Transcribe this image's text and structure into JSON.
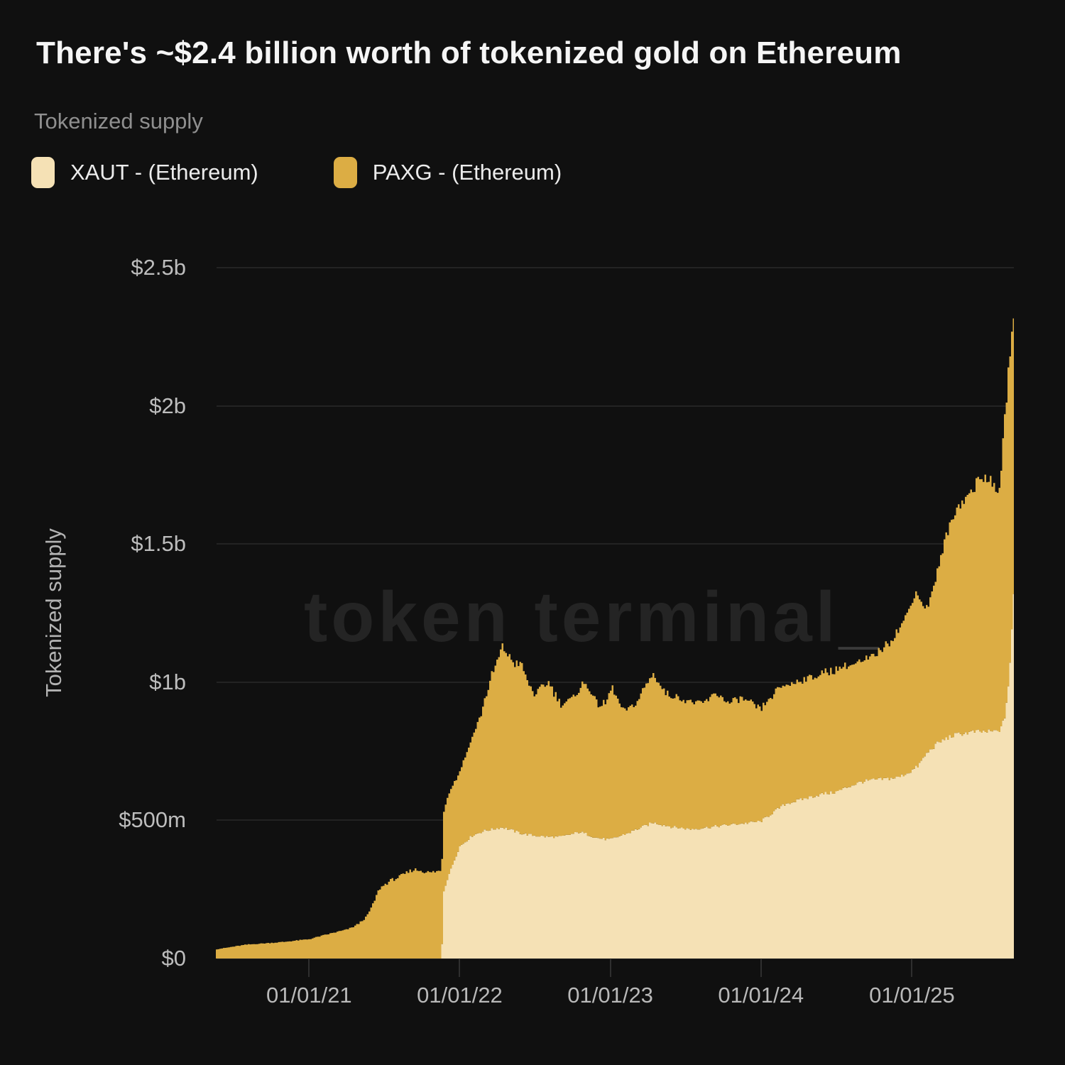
{
  "title": "There's ~$2.4 billion worth of tokenized gold on Ethereum",
  "subtitle": "Tokenized supply",
  "watermark": {
    "text": "token terminal",
    "suffix": "_"
  },
  "legend": {
    "items": [
      {
        "label": "XAUT - (Ethereum)",
        "color": "#f5e1b5"
      },
      {
        "label": "PAXG - (Ethereum)",
        "color": "#dcad44"
      }
    ]
  },
  "y_axis": {
    "title": "Tokenized supply",
    "ticks": [
      {
        "label": "$2.5b",
        "value_m": 2500
      },
      {
        "label": "$2b",
        "value_m": 2000
      },
      {
        "label": "$1.5b",
        "value_m": 1500
      },
      {
        "label": "$1b",
        "value_m": 1000
      },
      {
        "label": "$500m",
        "value_m": 500
      },
      {
        "label": "$0",
        "value_m": 0
      }
    ]
  },
  "x_axis": {
    "ticks": [
      {
        "label": "01/01/21",
        "date": "2021-01-01"
      },
      {
        "label": "01/01/22",
        "date": "2022-01-01"
      },
      {
        "label": "01/01/23",
        "date": "2023-01-01"
      },
      {
        "label": "01/01/24",
        "date": "2024-01-01"
      },
      {
        "label": "01/01/25",
        "date": "2025-01-01"
      }
    ]
  },
  "chart_data": {
    "type": "area",
    "stacked": true,
    "unit": "USD millions",
    "grid": "horizontal",
    "legend_position": "top-left",
    "x_range": [
      "2020-05-20",
      "2025-09-05"
    ],
    "ylim_m": [
      0,
      2500
    ],
    "approx_total_at_end_usd": "$2.4 billion",
    "series": [
      {
        "name": "XAUT - (Ethereum)",
        "color": "#f5e1b5",
        "points": [
          [
            "2020-05-20",
            0
          ],
          [
            "2021-11-19",
            0
          ],
          [
            "2021-11-21",
            230
          ],
          [
            "2021-12-05",
            300
          ],
          [
            "2022-01-01",
            405
          ],
          [
            "2022-02-01",
            445
          ],
          [
            "2022-03-01",
            462
          ],
          [
            "2022-04-15",
            475
          ],
          [
            "2022-06-01",
            452
          ],
          [
            "2022-07-01",
            445
          ],
          [
            "2022-08-05",
            440
          ],
          [
            "2022-09-04",
            440
          ],
          [
            "2022-10-20",
            458
          ],
          [
            "2022-12-01",
            436
          ],
          [
            "2023-01-01",
            430
          ],
          [
            "2023-02-15",
            455
          ],
          [
            "2023-04-15",
            492
          ],
          [
            "2023-06-01",
            476
          ],
          [
            "2023-07-15",
            468
          ],
          [
            "2023-09-01",
            476
          ],
          [
            "2023-11-01",
            486
          ],
          [
            "2024-01-01",
            496
          ],
          [
            "2024-02-01",
            530
          ],
          [
            "2024-03-01",
            560
          ],
          [
            "2024-04-01",
            572
          ],
          [
            "2024-05-01",
            585
          ],
          [
            "2024-06-01",
            596
          ],
          [
            "2024-07-01",
            602
          ],
          [
            "2024-08-01",
            622
          ],
          [
            "2024-09-01",
            640
          ],
          [
            "2024-10-01",
            646
          ],
          [
            "2024-11-01",
            650
          ],
          [
            "2024-12-01",
            656
          ],
          [
            "2025-01-01",
            680
          ],
          [
            "2025-01-15",
            695
          ],
          [
            "2025-02-05",
            740
          ],
          [
            "2025-03-01",
            775
          ],
          [
            "2025-03-20",
            792
          ],
          [
            "2025-04-10",
            806
          ],
          [
            "2025-05-01",
            814
          ],
          [
            "2025-06-01",
            820
          ],
          [
            "2025-07-01",
            820
          ],
          [
            "2025-07-25",
            822
          ],
          [
            "2025-08-05",
            830
          ],
          [
            "2025-08-15",
            880
          ],
          [
            "2025-08-25",
            1020
          ],
          [
            "2025-09-01",
            1200
          ],
          [
            "2025-09-05",
            1330
          ]
        ]
      },
      {
        "name": "PAXG - (Ethereum)",
        "color": "#dcad44",
        "points": [
          [
            "2020-05-20",
            33
          ],
          [
            "2020-08-01",
            50
          ],
          [
            "2020-11-01",
            60
          ],
          [
            "2021-01-01",
            70
          ],
          [
            "2021-02-01",
            82
          ],
          [
            "2021-03-01",
            93
          ],
          [
            "2021-04-01",
            104
          ],
          [
            "2021-04-15",
            112
          ],
          [
            "2021-05-01",
            126
          ],
          [
            "2021-05-20",
            150
          ],
          [
            "2021-06-05",
            196
          ],
          [
            "2021-06-20",
            252
          ],
          [
            "2021-07-15",
            280
          ],
          [
            "2021-08-15",
            300
          ],
          [
            "2021-09-10",
            322
          ],
          [
            "2021-10-01",
            318
          ],
          [
            "2021-10-20",
            310
          ],
          [
            "2021-11-10",
            316
          ],
          [
            "2021-11-19",
            315
          ],
          [
            "2021-11-21",
            292
          ],
          [
            "2021-12-05",
            300
          ],
          [
            "2022-01-01",
            272
          ],
          [
            "2022-02-01",
            360
          ],
          [
            "2022-02-20",
            420
          ],
          [
            "2022-03-20",
            556
          ],
          [
            "2022-04-15",
            655
          ],
          [
            "2022-05-10",
            607
          ],
          [
            "2022-06-01",
            612
          ],
          [
            "2022-06-15",
            548
          ],
          [
            "2022-07-01",
            512
          ],
          [
            "2022-08-05",
            560
          ],
          [
            "2022-09-04",
            475
          ],
          [
            "2022-10-05",
            492
          ],
          [
            "2022-10-25",
            534
          ],
          [
            "2022-11-10",
            540
          ],
          [
            "2022-12-01",
            482
          ],
          [
            "2022-12-20",
            488
          ],
          [
            "2023-01-05",
            548
          ],
          [
            "2023-02-01",
            448
          ],
          [
            "2023-03-01",
            452
          ],
          [
            "2023-04-15",
            540
          ],
          [
            "2023-05-15",
            480
          ],
          [
            "2023-07-01",
            466
          ],
          [
            "2023-08-15",
            452
          ],
          [
            "2023-09-15",
            482
          ],
          [
            "2023-10-15",
            440
          ],
          [
            "2023-11-15",
            455
          ],
          [
            "2024-01-01",
            404
          ],
          [
            "2024-02-01",
            428
          ],
          [
            "2024-03-01",
            432
          ],
          [
            "2024-04-01",
            430
          ],
          [
            "2024-05-01",
            434
          ],
          [
            "2024-06-01",
            436
          ],
          [
            "2024-07-01",
            444
          ],
          [
            "2024-08-01",
            440
          ],
          [
            "2024-09-01",
            432
          ],
          [
            "2024-10-01",
            446
          ],
          [
            "2024-11-01",
            486
          ],
          [
            "2024-12-01",
            534
          ],
          [
            "2024-12-20",
            578
          ],
          [
            "2025-01-10",
            640
          ],
          [
            "2025-02-05",
            522
          ],
          [
            "2025-03-01",
            600
          ],
          [
            "2025-03-20",
            708
          ],
          [
            "2025-04-10",
            795
          ],
          [
            "2025-05-01",
            838
          ],
          [
            "2025-05-20",
            862
          ],
          [
            "2025-06-10",
            900
          ],
          [
            "2025-07-01",
            930
          ],
          [
            "2025-07-25",
            858
          ],
          [
            "2025-08-05",
            920
          ],
          [
            "2025-08-15",
            1090
          ],
          [
            "2025-08-25",
            1150
          ],
          [
            "2025-09-01",
            1060
          ],
          [
            "2025-09-05",
            1010
          ]
        ]
      }
    ]
  }
}
